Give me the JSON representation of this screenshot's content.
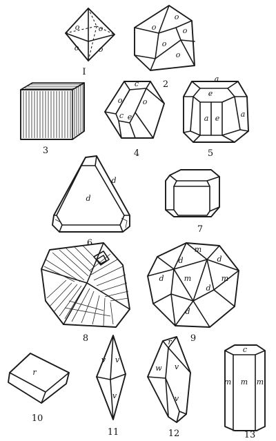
{
  "figures": [
    {
      "number": "I",
      "faces": [
        "o",
        "o",
        "o",
        "o"
      ]
    },
    {
      "number": "2",
      "faces": [
        "o",
        "o",
        "o",
        "o",
        "o"
      ]
    },
    {
      "number": "3",
      "faces": []
    },
    {
      "number": "4",
      "faces": [
        "c",
        "o",
        "o",
        "c",
        "e"
      ]
    },
    {
      "number": "5",
      "faces": [
        "a",
        "e",
        "a",
        "e",
        "a"
      ]
    },
    {
      "number": "6",
      "faces": [
        "d",
        "d"
      ]
    },
    {
      "number": "7",
      "faces": []
    },
    {
      "number": "8",
      "faces": []
    },
    {
      "number": "9",
      "faces": [
        "m",
        "d",
        "d",
        "m",
        "m",
        "d",
        "d",
        "d"
      ]
    },
    {
      "number": "10",
      "faces": [
        "r"
      ]
    },
    {
      "number": "11",
      "faces": [
        "v",
        "v",
        "v"
      ]
    },
    {
      "number": "12",
      "faces": [
        "r",
        "w",
        "v",
        "v"
      ]
    },
    {
      "number": "13",
      "faces": [
        "c",
        "m",
        "m",
        "m"
      ]
    }
  ]
}
